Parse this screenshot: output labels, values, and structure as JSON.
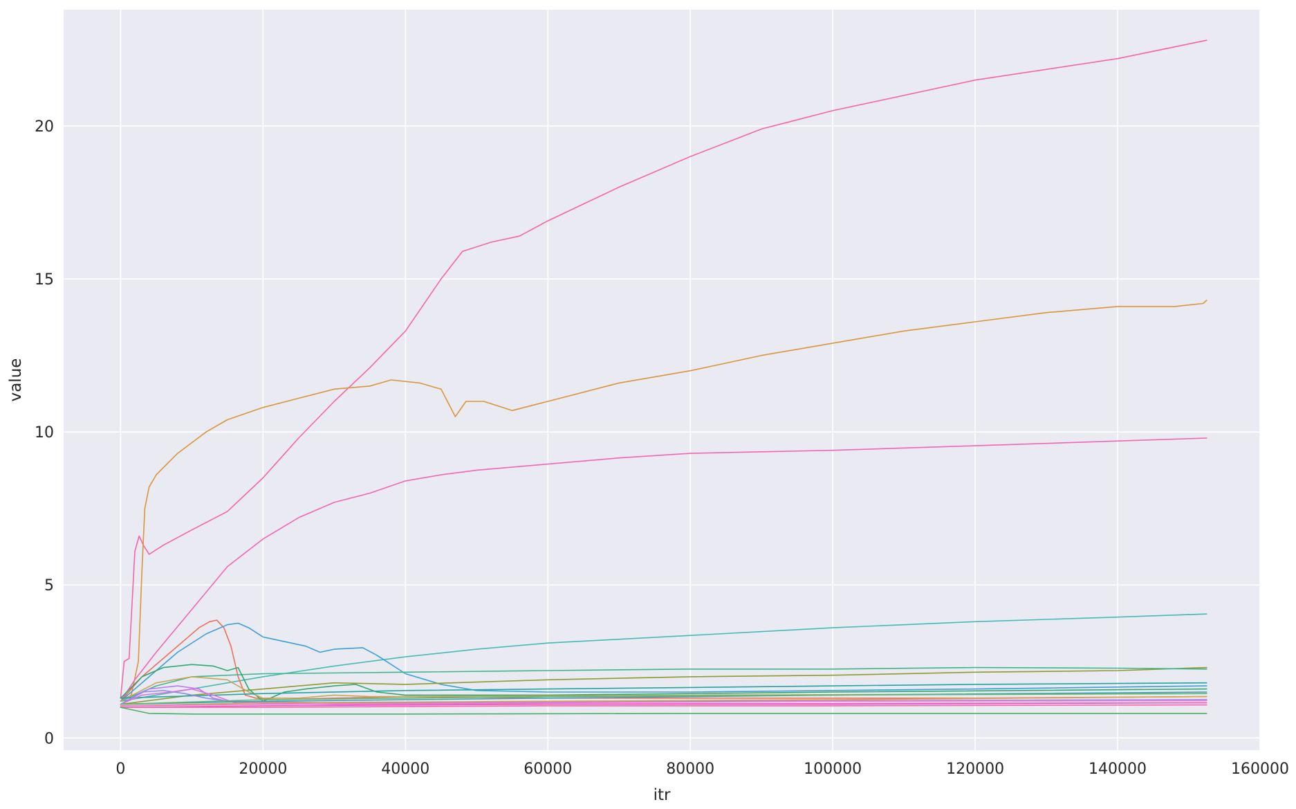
{
  "chart_data": {
    "type": "line",
    "title": "",
    "xlabel": "itr",
    "ylabel": "value",
    "xlim": [
      -8000,
      160000
    ],
    "ylim": [
      -0.4,
      23.8
    ],
    "xticks": [
      0,
      20000,
      40000,
      60000,
      80000,
      100000,
      120000,
      140000,
      160000
    ],
    "xtick_labels": [
      "0",
      "20000",
      "40000",
      "60000",
      "80000",
      "100000",
      "120000",
      "140000",
      "160000"
    ],
    "yticks": [
      0,
      5,
      10,
      15,
      20
    ],
    "ytick_labels": [
      "0",
      "5",
      "10",
      "15",
      "20"
    ],
    "grid": true,
    "legend": "none",
    "colors": {
      "plot_background": "#eaeaf2",
      "grid": "#ffffff"
    },
    "series": [
      {
        "color": "#f564a6",
        "x": [
          0,
          500,
          1200,
          2000,
          2600,
          3200,
          4000,
          6000,
          10000,
          15000,
          20000,
          25000,
          30000,
          35000,
          40000,
          45000,
          48000,
          52000,
          56000,
          60000,
          70000,
          80000,
          90000,
          100000,
          120000,
          140000,
          152500
        ],
        "y": [
          1.3,
          2.5,
          2.6,
          6.1,
          6.6,
          6.3,
          6.0,
          6.3,
          6.8,
          7.4,
          8.5,
          9.8,
          11.0,
          12.1,
          13.3,
          15.0,
          15.9,
          16.2,
          16.4,
          16.9,
          18.0,
          19.0,
          19.9,
          20.5,
          21.5,
          22.2,
          22.8
        ]
      },
      {
        "color": "#d9953a",
        "x": [
          0,
          1500,
          2500,
          3000,
          3400,
          4000,
          5000,
          8000,
          12000,
          15000,
          17500,
          20000,
          25000,
          30000,
          35000,
          38000,
          42000,
          45000,
          47000,
          48500,
          51000,
          55000,
          60000,
          70000,
          80000,
          90000,
          100000,
          110000,
          120000,
          130000,
          140000,
          148000,
          152000,
          152500
        ],
        "y": [
          1.2,
          1.4,
          2.5,
          5.5,
          7.5,
          8.2,
          8.6,
          9.3,
          10.0,
          10.4,
          10.6,
          10.8,
          11.1,
          11.4,
          11.5,
          11.7,
          11.6,
          11.4,
          10.5,
          11.0,
          11.0,
          10.7,
          11.0,
          11.6,
          12.0,
          12.5,
          12.9,
          13.3,
          13.6,
          13.9,
          14.1,
          14.1,
          14.2,
          14.3
        ]
      },
      {
        "color": "#f066b4",
        "x": [
          0,
          2000,
          5000,
          10000,
          15000,
          20000,
          25000,
          30000,
          35000,
          40000,
          45000,
          50000,
          60000,
          70000,
          80000,
          100000,
          120000,
          152500
        ],
        "y": [
          1.2,
          1.9,
          2.8,
          4.2,
          5.6,
          6.5,
          7.2,
          7.7,
          8.0,
          8.4,
          8.6,
          8.75,
          8.95,
          9.15,
          9.3,
          9.4,
          9.55,
          9.8
        ]
      },
      {
        "color": "#46b9b4",
        "x": [
          0,
          10000,
          20000,
          30000,
          40000,
          50000,
          60000,
          80000,
          100000,
          120000,
          140000,
          152500
        ],
        "y": [
          1.2,
          1.6,
          2.0,
          2.35,
          2.65,
          2.9,
          3.1,
          3.35,
          3.6,
          3.8,
          3.95,
          4.05
        ]
      },
      {
        "color": "#ec6f5c",
        "x": [
          0,
          3000,
          6000,
          9000,
          11000,
          12500,
          13500,
          14500,
          15500,
          16500,
          17500,
          19000,
          22000,
          30000,
          40000,
          60000,
          80000,
          100000,
          120000,
          152500
        ],
        "y": [
          1.2,
          2.0,
          2.6,
          3.2,
          3.6,
          3.8,
          3.85,
          3.6,
          3.0,
          2.0,
          1.4,
          1.3,
          1.25,
          1.3,
          1.35,
          1.3,
          1.3,
          1.3,
          1.3,
          1.35
        ]
      },
      {
        "color": "#3a9fd8",
        "x": [
          0,
          4000,
          8000,
          12000,
          15000,
          16500,
          18000,
          20000,
          22000,
          26000,
          28000,
          30000,
          34000,
          36000,
          40000,
          45000,
          50000,
          60000,
          80000,
          100000,
          120000,
          152500
        ],
        "y": [
          1.2,
          2.0,
          2.8,
          3.4,
          3.7,
          3.75,
          3.6,
          3.3,
          3.2,
          3.0,
          2.8,
          2.9,
          2.95,
          2.7,
          2.1,
          1.75,
          1.55,
          1.5,
          1.5,
          1.55,
          1.6,
          1.7
        ]
      },
      {
        "color": "#8f9a2f",
        "x": [
          0,
          10000,
          20000,
          30000,
          40000,
          60000,
          80000,
          100000,
          120000,
          140000,
          152500
        ],
        "y": [
          1.1,
          1.4,
          1.6,
          1.8,
          1.75,
          1.9,
          2.0,
          2.05,
          2.15,
          2.2,
          2.3
        ]
      },
      {
        "color": "#3fb48a",
        "x": [
          0,
          5000,
          10000,
          20000,
          40000,
          60000,
          80000,
          100000,
          120000,
          140000,
          152500
        ],
        "y": [
          1.2,
          1.7,
          2.0,
          2.1,
          2.15,
          2.2,
          2.25,
          2.25,
          2.3,
          2.28,
          2.25
        ]
      },
      {
        "color": "#2fa86c",
        "x": [
          0,
          3000,
          6000,
          10000,
          13000,
          15000,
          16500,
          18000,
          20000,
          23000,
          26000,
          30000,
          33000,
          36000,
          40000,
          60000,
          100000,
          152500
        ],
        "y": [
          1.3,
          2.0,
          2.3,
          2.4,
          2.35,
          2.2,
          2.3,
          1.6,
          1.2,
          1.5,
          1.6,
          1.7,
          1.75,
          1.5,
          1.4,
          1.4,
          1.5,
          1.6
        ]
      },
      {
        "color": "#c5a65a",
        "x": [
          0,
          5000,
          10000,
          15000,
          18000,
          20000,
          25000,
          30000,
          35000,
          40000,
          80000,
          152500
        ],
        "y": [
          1.2,
          1.8,
          2.0,
          1.9,
          1.5,
          1.3,
          1.3,
          1.4,
          1.35,
          1.35,
          1.4,
          1.45
        ]
      },
      {
        "color": "#1fa5a0",
        "x": [
          0,
          20000,
          40000,
          60000,
          80000,
          100000,
          120000,
          140000,
          152500
        ],
        "y": [
          1.3,
          1.45,
          1.55,
          1.6,
          1.65,
          1.7,
          1.75,
          1.78,
          1.8
        ]
      },
      {
        "color": "#b57ff0",
        "x": [
          0,
          4000,
          8000,
          11000,
          13000,
          15000,
          20000,
          40000,
          80000,
          152500
        ],
        "y": [
          1.1,
          1.6,
          1.7,
          1.6,
          1.3,
          1.2,
          1.15,
          1.15,
          1.2,
          1.25
        ]
      },
      {
        "color": "#8c8cf0",
        "x": [
          0,
          3000,
          6000,
          9000,
          12000,
          15000,
          30000,
          80000,
          152500
        ],
        "y": [
          1.1,
          1.5,
          1.55,
          1.45,
          1.3,
          1.2,
          1.15,
          1.2,
          1.25
        ]
      },
      {
        "color": "#e56ee0",
        "x": [
          0,
          3000,
          7000,
          10000,
          13000,
          16000,
          30000,
          80000,
          152500
        ],
        "y": [
          1.1,
          1.4,
          1.5,
          1.6,
          1.4,
          1.15,
          1.1,
          1.12,
          1.15
        ]
      },
      {
        "color": "#3aa0c8",
        "x": [
          0,
          20000,
          60000,
          100000,
          152500
        ],
        "y": [
          1.1,
          1.2,
          1.3,
          1.4,
          1.5
        ]
      },
      {
        "color": "#d8a24a",
        "x": [
          0,
          20000,
          60000,
          100000,
          152500
        ],
        "y": [
          1.05,
          1.15,
          1.2,
          1.25,
          1.35
        ]
      },
      {
        "color": "#f25cc0",
        "x": [
          0,
          20000,
          60000,
          100000,
          152500
        ],
        "y": [
          1.0,
          1.05,
          1.1,
          1.1,
          1.15
        ]
      },
      {
        "color": "#f568a8",
        "x": [
          0,
          20000,
          60000,
          100000,
          152500
        ],
        "y": [
          1.0,
          1.0,
          1.05,
          1.05,
          1.08
        ]
      },
      {
        "color": "#ee7ad2",
        "x": [
          0,
          20000,
          60000,
          100000,
          152500
        ],
        "y": [
          1.05,
          1.1,
          1.15,
          1.2,
          1.22
        ]
      },
      {
        "color": "#63b86a",
        "x": [
          0,
          20000,
          60000,
          100000,
          152500
        ],
        "y": [
          1.1,
          1.25,
          1.35,
          1.4,
          1.45
        ]
      },
      {
        "color": "#4ab05f",
        "x": [
          0,
          2000,
          4000,
          10000,
          20000,
          40000,
          80000,
          152500
        ],
        "y": [
          1.0,
          0.9,
          0.8,
          0.78,
          0.78,
          0.78,
          0.8,
          0.8
        ]
      }
    ]
  }
}
